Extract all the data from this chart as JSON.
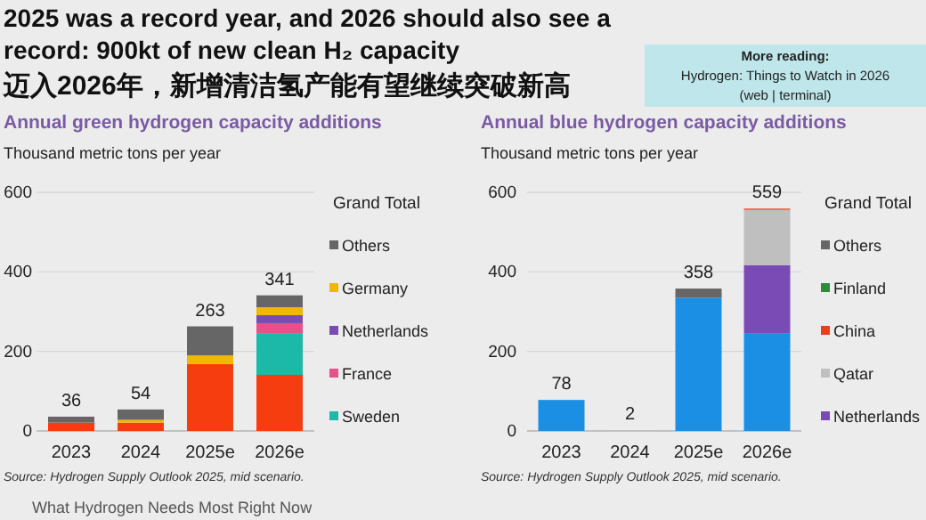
{
  "chart_data": [
    {
      "type": "other",
      "title": "2025 was a record year, and 2026 should also see a record: 900kt of new clean H₂ capacity",
      "subtitle": "迈入2026年，新增清洁氢产能有望继续突破新高",
      "annotations": [
        "More reading:",
        "Hydrogen: Things to Watch in 2026",
        "(web | terminal)",
        "What Hydrogen Needs Most Right Now"
      ]
    },
    {
      "type": "bar",
      "title": "Annual green hydrogen capacity additions",
      "ylabel": "Thousand metric tons per year",
      "categories": [
        "2023",
        "2024",
        "2025e",
        "2026e"
      ],
      "stacked": true,
      "ylim": [
        0,
        600
      ],
      "yticks": [
        0,
        200,
        400,
        600
      ],
      "grid": "y",
      "legend": "right",
      "legend_title": "Grand Total",
      "totals": [
        "36",
        "54",
        "263",
        "341"
      ],
      "annotations": [
        "Source: Hydrogen Supply Outlook 2025, mid scenario."
      ],
      "series": [
        {
          "color": "#f53d0f",
          "values": [
            21,
            21,
            168,
            141
          ]
        },
        {
          "name": "Sweden",
          "color": "#1cb8a8",
          "values": [
            null,
            null,
            null,
            105
          ]
        },
        {
          "name": "France",
          "color": "#e8508a",
          "values": [
            null,
            null,
            null,
            25
          ]
        },
        {
          "name": "Netherlands",
          "color": "#7b4bb5",
          "values": [
            null,
            null,
            null,
            20
          ]
        },
        {
          "name": "Germany",
          "color": "#f2b800",
          "values": [
            null,
            7,
            22,
            20
          ]
        },
        {
          "name": "Others",
          "color": "#666666",
          "values": [
            15,
            26,
            73,
            30
          ]
        }
      ]
    },
    {
      "type": "bar",
      "title": "Annual blue hydrogen capacity additions",
      "ylabel": "Thousand metric tons per year",
      "categories": [
        "2023",
        "2024",
        "2025e",
        "2026e"
      ],
      "stacked": true,
      "ylim": [
        0,
        600
      ],
      "yticks": [
        0,
        200,
        400,
        600
      ],
      "grid": "y",
      "legend": "right",
      "legend_title": "Grand Total",
      "totals": [
        "78",
        "2",
        "358",
        "559"
      ],
      "annotations": [
        "Source: Hydrogen Supply Outlook 2025, mid scenario."
      ],
      "series": [
        {
          "color": "#1a8fe3",
          "values": [
            78,
            null,
            335,
            246
          ]
        },
        {
          "name": "Netherlands",
          "color": "#7b4bb5",
          "values": [
            null,
            null,
            null,
            171
          ]
        },
        {
          "name": "Qatar",
          "color": "#bfbfbf",
          "values": [
            null,
            2,
            null,
            139
          ]
        },
        {
          "name": "China",
          "color": "#e8401c",
          "values": [
            null,
            null,
            null,
            3
          ]
        },
        {
          "name": "Finland",
          "color": "#2e8b3e",
          "values": [
            null,
            null,
            null,
            null
          ]
        },
        {
          "name": "Others",
          "color": "#666666",
          "values": [
            null,
            null,
            23,
            null
          ]
        }
      ]
    }
  ]
}
